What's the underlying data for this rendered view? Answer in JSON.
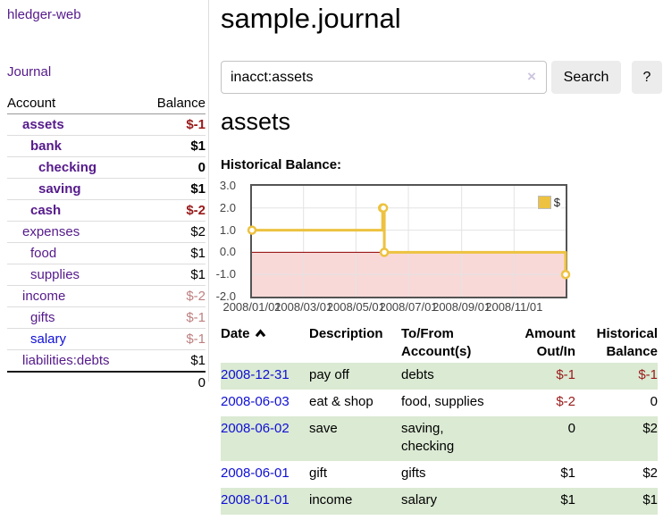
{
  "app_title": "hledger-web",
  "colors": {
    "link_purple": "#551a8b",
    "link_blue": "#0f0fd6",
    "negative_dark_red": "#991a1a",
    "negative_faded_red": "#bf7f7f",
    "row_stripe_green": "#dbead3",
    "chart_line_gold": "#EDC240",
    "chart_negative_region_pink": "#f9d8d8",
    "chart_zero_line_red": "#8f0000"
  },
  "sidebar": {
    "journal_link": "Journal",
    "accounts": {
      "headers": {
        "account": "Account",
        "balance": "Balance"
      },
      "rows": [
        {
          "name": "assets",
          "depth": 1,
          "strong": true,
          "link_color": "purple",
          "balance": "$-1",
          "balance_color": "dark-red"
        },
        {
          "name": "bank",
          "depth": 2,
          "strong": true,
          "link_color": "purple",
          "balance": "$1",
          "balance_color": "default"
        },
        {
          "name": "checking",
          "depth": 3,
          "strong": true,
          "link_color": "purple",
          "balance": "0",
          "balance_color": "default"
        },
        {
          "name": "saving",
          "depth": 3,
          "strong": true,
          "link_color": "purple",
          "balance": "$1",
          "balance_color": "default"
        },
        {
          "name": "cash",
          "depth": 2,
          "strong": true,
          "link_color": "purple",
          "balance": "$-2",
          "balance_color": "dark-red"
        },
        {
          "name": "expenses",
          "depth": 1,
          "strong": false,
          "link_color": "purple",
          "balance": "$2",
          "balance_color": "default"
        },
        {
          "name": "food",
          "depth": 2,
          "strong": false,
          "link_color": "purple",
          "balance": "$1",
          "balance_color": "default"
        },
        {
          "name": "supplies",
          "depth": 2,
          "strong": false,
          "link_color": "purple",
          "balance": "$1",
          "balance_color": "default"
        },
        {
          "name": "income",
          "depth": 1,
          "strong": false,
          "link_color": "purple",
          "balance": "$-2",
          "balance_color": "faded-red"
        },
        {
          "name": "gifts",
          "depth": 2,
          "strong": false,
          "link_color": "purple",
          "balance": "$-1",
          "balance_color": "faded-red"
        },
        {
          "name": "salary",
          "depth": 2,
          "strong": false,
          "link_color": "blue",
          "balance": "$-1",
          "balance_color": "faded-red"
        },
        {
          "name": "liabilities:debts",
          "depth": 1,
          "strong": false,
          "link_color": "purple",
          "balance": "$1",
          "balance_color": "default"
        }
      ],
      "total": "0"
    }
  },
  "main": {
    "title": "sample.journal",
    "search": {
      "value": "inacct:assets",
      "clear_label": "×",
      "search_button": "Search",
      "help_button": "?"
    },
    "account_heading": "assets",
    "chart_label": "Historical Balance:",
    "register": {
      "headers": {
        "date": "Date",
        "description": "Description",
        "accounts": "To/From Account(s)",
        "amount": "Amount Out/In",
        "balance": "Historical Balance"
      },
      "rows": [
        {
          "date": "2008-12-31",
          "description": "pay off",
          "accounts": "debts",
          "amount": "$-1",
          "amount_neg": true,
          "balance": "$-1",
          "balance_neg": true
        },
        {
          "date": "2008-06-03",
          "description": "eat & shop",
          "accounts": "food, supplies",
          "amount": "$-2",
          "amount_neg": true,
          "balance": "0",
          "balance_neg": false
        },
        {
          "date": "2008-06-02",
          "description": "save",
          "accounts": "saving, checking",
          "amount": "0",
          "amount_neg": false,
          "balance": "$2",
          "balance_neg": false
        },
        {
          "date": "2008-06-01",
          "description": "gift",
          "accounts": "gifts",
          "amount": "$1",
          "amount_neg": false,
          "balance": "$2",
          "balance_neg": false
        },
        {
          "date": "2008-01-01",
          "description": "income",
          "accounts": "salary",
          "amount": "$1",
          "amount_neg": false,
          "balance": "$1",
          "balance_neg": false
        }
      ]
    }
  },
  "chart_data": {
    "type": "line",
    "step": true,
    "title": "Historical Balance:",
    "legend_label": "$",
    "legend_position": "top-right",
    "x": [
      "2008-01-01",
      "2008-06-01",
      "2008-06-02",
      "2008-06-03",
      "2008-12-31"
    ],
    "series": [
      {
        "name": "$",
        "values": [
          1,
          2,
          2,
          0,
          -1
        ]
      }
    ],
    "x_ticks": [
      "2008/01/01",
      "2008/03/01",
      "2008/05/01",
      "2008/07/01",
      "2008/09/01",
      "2008/11/01"
    ],
    "y_ticks": [
      "3.0",
      "2.0",
      "1.0",
      "0.0",
      "-1.0",
      "-2.0"
    ],
    "xlim": [
      "2008-01-01",
      "2008-12-31"
    ],
    "ylim": [
      -2,
      3
    ],
    "grid": true,
    "negative_region_shaded": true
  }
}
